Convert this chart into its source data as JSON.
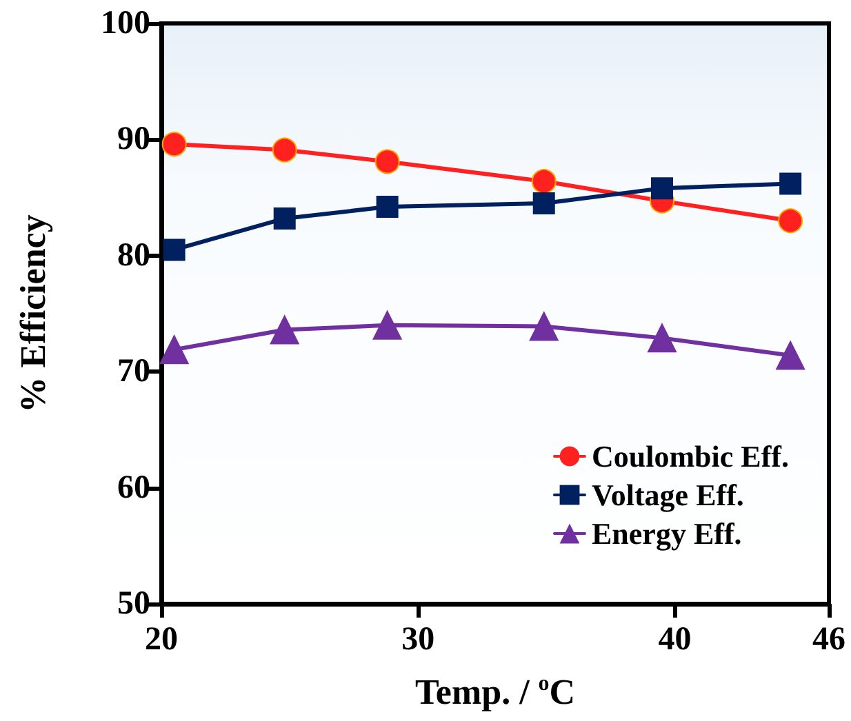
{
  "chart_data": {
    "type": "line",
    "xlabel": "Temp. / $^{o}$C",
    "ylabel": "% Efficiency",
    "xlim": [
      20,
      46
    ],
    "xticks": [
      20,
      30,
      40,
      46
    ],
    "ylim": [
      50,
      100
    ],
    "yticks": [
      50,
      60,
      70,
      80,
      90,
      100
    ],
    "x": [
      20.5,
      24.8,
      28.8,
      34.9,
      39.5,
      44.5
    ],
    "series": [
      {
        "name": "Coulombic Eff.",
        "color": "#ff2020",
        "marker": "circle",
        "values": [
          89.6,
          89.1,
          88.1,
          86.4,
          84.7,
          83.0
        ]
      },
      {
        "name": "Voltage Eff.",
        "color": "#002060",
        "marker": "square",
        "values": [
          80.5,
          83.2,
          84.2,
          84.5,
          85.8,
          86.2
        ]
      },
      {
        "name": "Energy Eff.",
        "color": "#7030a0",
        "marker": "triangle",
        "values": [
          71.9,
          73.6,
          74.0,
          73.9,
          72.9,
          71.4
        ]
      }
    ],
    "grid": false,
    "legend": "bottom right",
    "line_style": "solid"
  }
}
